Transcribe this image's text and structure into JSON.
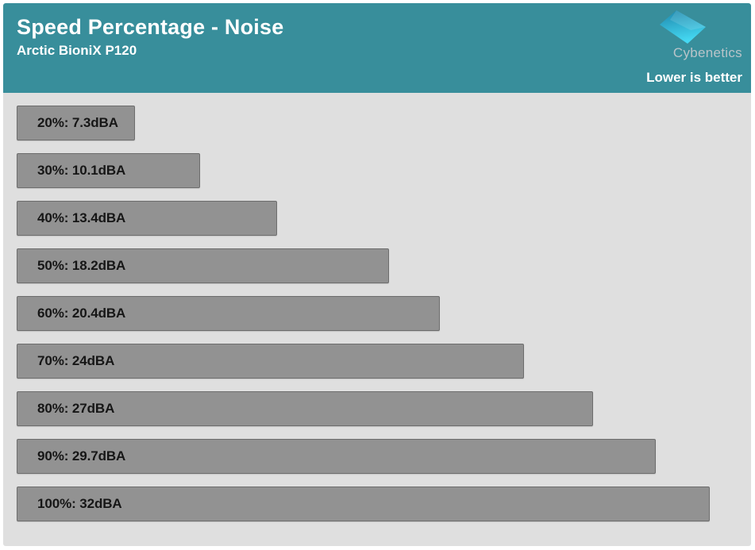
{
  "header": {
    "title": "Speed Percentage - Noise",
    "subtitle": "Arctic BioniX P120",
    "brand": "Cybenetics",
    "note": "Lower is better"
  },
  "colors": {
    "header_bg": "#388e9b",
    "panel_bg": "#dfdfdf",
    "bar_fill": "#929292",
    "bar_border": "#6d6d6d",
    "bar_text": "#161616",
    "title_text": "#ffffff",
    "brand_text": "#b9c4c9",
    "logo_gradient_top": "#1d86ab",
    "logo_gradient_bottom": "#45d9f3"
  },
  "chart_data": {
    "type": "bar",
    "orientation": "horizontal",
    "title": "Speed Percentage - Noise",
    "subtitle": "Arctic BioniX P120",
    "annotation": "Lower is better",
    "categories": [
      "20%",
      "30%",
      "40%",
      "50%",
      "60%",
      "70%",
      "80%",
      "90%",
      "100%"
    ],
    "values": [
      7.3,
      10.1,
      13.4,
      18.2,
      20.4,
      24,
      27,
      29.7,
      32
    ],
    "unit": "dBA",
    "bar_labels": [
      "20%: 7.3dBA",
      "30%: 10.1dBA",
      "40%: 13.4dBA",
      "50%: 18.2dBA",
      "60%: 20.4dBA",
      "70%: 24dBA",
      "80%: 27dBA",
      "90%: 29.7dBA",
      "100%: 32dBA"
    ],
    "xlabel": "",
    "ylabel": "",
    "xlim": [
      2.2,
      33.2
    ],
    "grid": false,
    "legend": false
  }
}
